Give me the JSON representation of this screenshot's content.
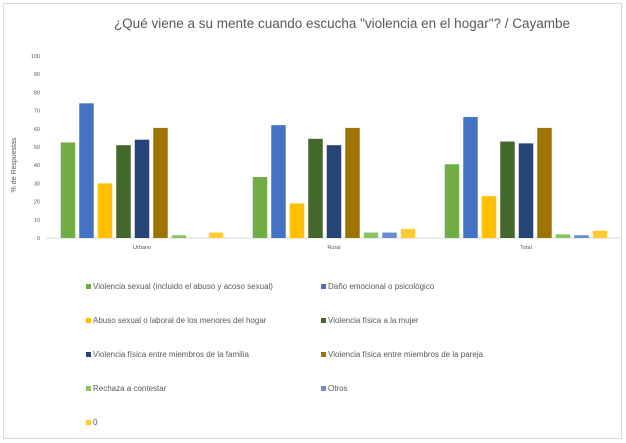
{
  "chart_data": {
    "type": "bar",
    "title": "¿Qué viene a su mente cuando escucha \"violencia en el hogar\"?  / Cayambe",
    "xlabel": "",
    "ylabel": "% de Respuestas",
    "ylim": [
      0,
      100
    ],
    "yticks": [
      0,
      10,
      20,
      30,
      40,
      50,
      60,
      70,
      80,
      90,
      100
    ],
    "grid": false,
    "legend": "bottom",
    "categories": [
      "Urbano",
      "Rural",
      "Total"
    ],
    "series": [
      {
        "name": "Violencia sexual (incluido el abuso y acoso sexual)",
        "color": "#70ad47",
        "values": [
          52.5,
          33.5,
          40.5
        ]
      },
      {
        "name": "Daño emocional o psicológico",
        "color": "#4472c4",
        "values": [
          74,
          62,
          66.5
        ]
      },
      {
        "name": "Abuso sexual o laboral de los menores del hogar",
        "color": "#ffc000",
        "values": [
          30,
          19,
          23
        ]
      },
      {
        "name": "Violencia física a la mujer",
        "color": "#43682b",
        "values": [
          51,
          54.5,
          53
        ]
      },
      {
        "name": "Violencia física entre miembros de la familia",
        "color": "#264478",
        "values": [
          54,
          51,
          52
        ]
      },
      {
        "name": "Violencia física entre miembros de la pareja",
        "color": "#9e7400",
        "values": [
          60.5,
          60.5,
          60.5
        ]
      },
      {
        "name": "Rechaza a contestar",
        "color": "#8cc168",
        "values": [
          1.5,
          3,
          2
        ]
      },
      {
        "name": "Otros",
        "color": "#698ed0",
        "values": [
          0,
          3,
          1.5
        ]
      },
      {
        "name": "0",
        "color": "#ffcd33",
        "values": [
          3,
          5,
          4
        ]
      }
    ]
  }
}
